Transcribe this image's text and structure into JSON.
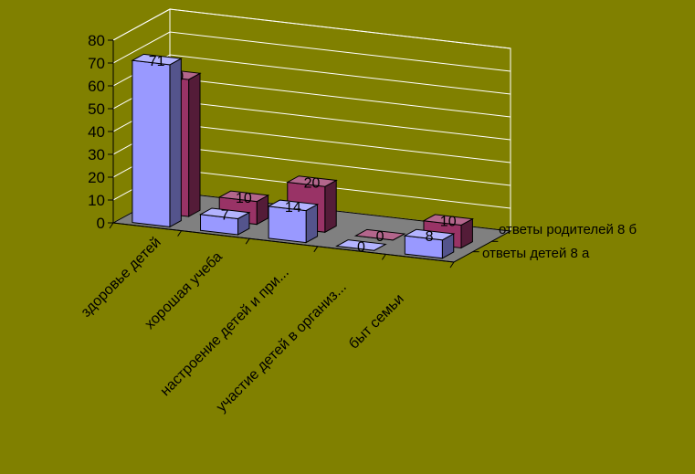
{
  "chart_data": {
    "type": "bar",
    "categories": [
      "здоровье детей",
      "хорошая учеба",
      "настроение детей и при...",
      "участие детей в организ...",
      "быт семьи"
    ],
    "series": [
      {
        "name": "ответы детей  8 а",
        "values": [
          71,
          7,
          14,
          0,
          8
        ],
        "color": "#9999FF"
      },
      {
        "name": "ответы родителей 8 б",
        "values": [
          60,
          10,
          20,
          0,
          10
        ],
        "color": "#993366"
      }
    ],
    "yticks": [
      0,
      10,
      20,
      30,
      40,
      50,
      60,
      70,
      80
    ],
    "ylim": [
      0,
      80
    ],
    "grid": true,
    "legend": "right",
    "title": "",
    "xlabel": "",
    "ylabel": ""
  }
}
